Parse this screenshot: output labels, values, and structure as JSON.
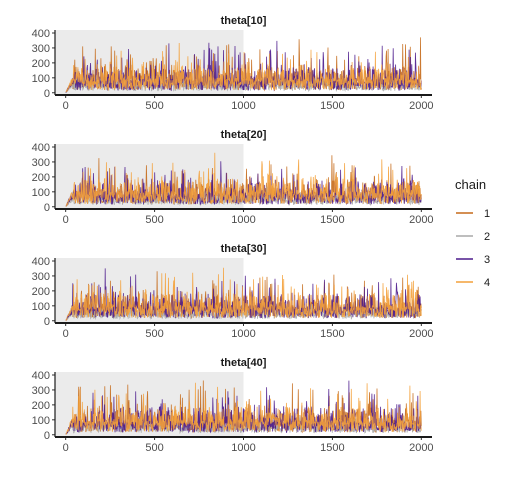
{
  "chart_data": {
    "type": "line",
    "layout": "4 stacked facets (traceplot)",
    "legend": {
      "title": "chain",
      "position": "right",
      "entries": [
        {
          "label": "1",
          "color": "#c56a1a"
        },
        {
          "label": "2",
          "color": "#a9a9a9"
        },
        {
          "label": "3",
          "color": "#4b1a8c"
        },
        {
          "label": "4",
          "color": "#f4a13a"
        }
      ]
    },
    "warmup_region": {
      "from": 0,
      "to": 1000,
      "color": "#ebebeb"
    },
    "xlim": [
      -60,
      2060
    ],
    "x_ticks": [
      0,
      500,
      1000,
      1500,
      2000
    ],
    "x_tick_labels": [
      "0",
      "500",
      "1000",
      "1500",
      "2000"
    ],
    "ylim": [
      -15,
      420
    ],
    "y_ticks": [
      0,
      100,
      200,
      300,
      400
    ],
    "y_tick_labels": [
      "0",
      "100",
      "200",
      "300",
      "400"
    ],
    "iterations": 2000,
    "facets": [
      {
        "title": "theta[10]",
        "seed": 11,
        "chains": [
          {
            "chain": "1",
            "level": 85,
            "spread": 105,
            "max": 400
          },
          {
            "chain": "2",
            "level": 60,
            "spread": 40,
            "max": 160
          },
          {
            "chain": "3",
            "level": 80,
            "spread": 110,
            "max": 400
          },
          {
            "chain": "4",
            "level": 90,
            "spread": 115,
            "max": 390
          }
        ]
      },
      {
        "title": "theta[20]",
        "seed": 23,
        "chains": [
          {
            "chain": "1",
            "level": 85,
            "spread": 100,
            "max": 370
          },
          {
            "chain": "2",
            "level": 60,
            "spread": 40,
            "max": 160
          },
          {
            "chain": "3",
            "level": 80,
            "spread": 105,
            "max": 360
          },
          {
            "chain": "4",
            "level": 95,
            "spread": 115,
            "max": 390
          }
        ]
      },
      {
        "title": "theta[30]",
        "seed": 37,
        "chains": [
          {
            "chain": "1",
            "level": 90,
            "spread": 105,
            "max": 400
          },
          {
            "chain": "2",
            "level": 60,
            "spread": 40,
            "max": 160
          },
          {
            "chain": "3",
            "level": 85,
            "spread": 110,
            "max": 370
          },
          {
            "chain": "4",
            "level": 95,
            "spread": 110,
            "max": 390
          }
        ]
      },
      {
        "title": "theta[40]",
        "seed": 41,
        "chains": [
          {
            "chain": "1",
            "level": 85,
            "spread": 105,
            "max": 400
          },
          {
            "chain": "2",
            "level": 60,
            "spread": 40,
            "max": 160
          },
          {
            "chain": "3",
            "level": 80,
            "spread": 110,
            "max": 380
          },
          {
            "chain": "4",
            "level": 95,
            "spread": 115,
            "max": 400
          }
        ]
      }
    ]
  }
}
